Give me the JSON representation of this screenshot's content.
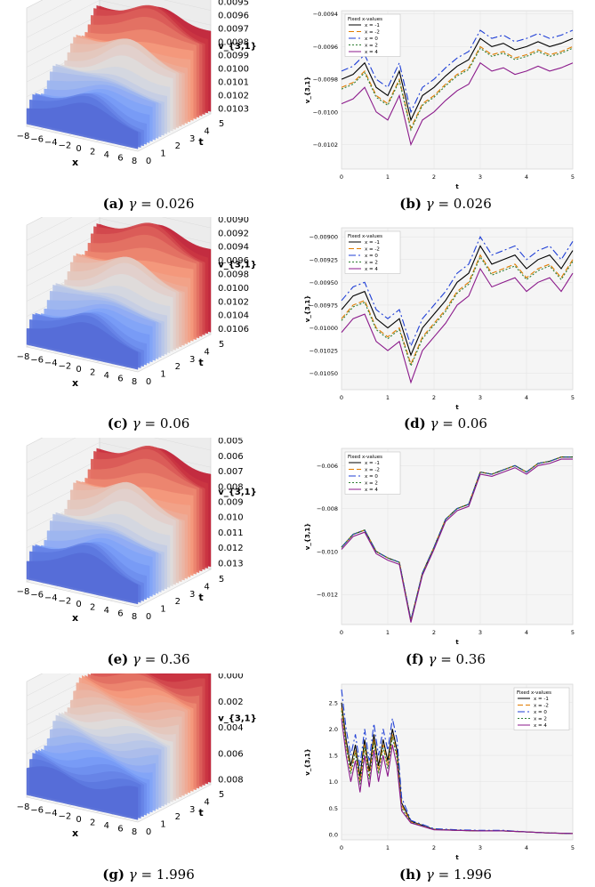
{
  "figure": {
    "captions": [
      {
        "tag": "(a)",
        "gamma": "γ",
        "eq": "= 0.026"
      },
      {
        "tag": "(b)",
        "gamma": "γ",
        "eq": "= 0.026"
      },
      {
        "tag": "(c)",
        "gamma": "γ",
        "eq": "= 0.06"
      },
      {
        "tag": "(d)",
        "gamma": "γ",
        "eq": "= 0.06"
      },
      {
        "tag": "(e)",
        "gamma": "γ",
        "eq": "= 0.36"
      },
      {
        "tag": "(f)",
        "gamma": "γ",
        "eq": "= 0.36"
      },
      {
        "tag": "(g)",
        "gamma": "γ",
        "eq": "= 1.996"
      },
      {
        "tag": "(h)",
        "gamma": "γ",
        "eq": "= 1.996"
      }
    ]
  },
  "chart_data": [
    {
      "type": "surface3d",
      "panel": "a",
      "xlabel": "x",
      "ylabel": "t",
      "zlabel": "v_{3,1}",
      "x_ticks": [
        "−8",
        "−6",
        "−4",
        "−2",
        "0",
        "2",
        "4",
        "6",
        "8"
      ],
      "t_ticks": [
        "0",
        "1",
        "2",
        "3",
        "4",
        "5"
      ],
      "z_ticks": [
        "0.0095",
        "0.0096",
        "0.0097",
        "0.0098",
        "0.0099",
        "0.0100",
        "0.0101",
        "0.0102",
        "0.0103"
      ],
      "colormap": [
        "#b40426",
        "#f4987a",
        "#dddddd",
        "#7b9ff9",
        "#3b4cc0"
      ]
    },
    {
      "type": "line",
      "panel": "b",
      "xlabel": "t",
      "ylabel": "v_{3,1}",
      "x_ticks": [
        "0",
        "1",
        "2",
        "3",
        "4",
        "5"
      ],
      "y_ticks": [
        "−0.0094",
        "−0.0096",
        "−0.0098",
        "−0.0100",
        "−0.0102"
      ],
      "xlim": [
        0,
        5
      ],
      "ylim": [
        -0.01035,
        -0.00938
      ],
      "legend_title": "Fixed x-values",
      "legend_position": "top-left",
      "t": [
        0,
        0.25,
        0.5,
        0.75,
        1.0,
        1.25,
        1.5,
        1.75,
        2.0,
        2.25,
        2.5,
        2.75,
        3.0,
        3.25,
        3.5,
        3.75,
        4.0,
        4.25,
        4.5,
        4.75,
        5.0
      ],
      "series": [
        {
          "name": "x = -1",
          "color": "#000000",
          "dash": "solid",
          "values": [
            -0.0098,
            -0.00977,
            -0.0097,
            -0.00985,
            -0.0099,
            -0.00975,
            -0.01005,
            -0.0099,
            -0.00985,
            -0.00978,
            -0.00972,
            -0.00968,
            -0.00955,
            -0.0096,
            -0.00958,
            -0.00962,
            -0.0096,
            -0.00957,
            -0.0096,
            -0.00958,
            -0.00955
          ]
        },
        {
          "name": "x = -2",
          "color": "#e07b00",
          "dash": "6,3",
          "values": [
            -0.00985,
            -0.00982,
            -0.00975,
            -0.0099,
            -0.00995,
            -0.0098,
            -0.0101,
            -0.00995,
            -0.0099,
            -0.00983,
            -0.00977,
            -0.00973,
            -0.0096,
            -0.00965,
            -0.00963,
            -0.00967,
            -0.00965,
            -0.00962,
            -0.00965,
            -0.00963,
            -0.0096
          ]
        },
        {
          "name": "x = 0",
          "color": "#1f3fd6",
          "dash": "8,3,2,3",
          "values": [
            -0.00975,
            -0.00972,
            -0.00965,
            -0.0098,
            -0.00985,
            -0.0097,
            -0.01,
            -0.00985,
            -0.0098,
            -0.00973,
            -0.00967,
            -0.00963,
            -0.0095,
            -0.00955,
            -0.00953,
            -0.00957,
            -0.00955,
            -0.00952,
            -0.00955,
            -0.00953,
            -0.0095
          ]
        },
        {
          "name": "x = 2",
          "color": "#2e7d32",
          "dash": "2,2",
          "values": [
            -0.00986,
            -0.00983,
            -0.00976,
            -0.00991,
            -0.00996,
            -0.00981,
            -0.01011,
            -0.00996,
            -0.00991,
            -0.00984,
            -0.00978,
            -0.00974,
            -0.00961,
            -0.00966,
            -0.00964,
            -0.00968,
            -0.00966,
            -0.00963,
            -0.00966,
            -0.00964,
            -0.00961
          ]
        },
        {
          "name": "x = 4",
          "color": "#8b1a8b",
          "dash": "solid",
          "values": [
            -0.00995,
            -0.00992,
            -0.00985,
            -0.01,
            -0.01005,
            -0.0099,
            -0.0102,
            -0.01005,
            -0.01,
            -0.00993,
            -0.00987,
            -0.00983,
            -0.0097,
            -0.00975,
            -0.00973,
            -0.00977,
            -0.00975,
            -0.00972,
            -0.00975,
            -0.00973,
            -0.0097
          ]
        }
      ]
    },
    {
      "type": "surface3d",
      "panel": "c",
      "xlabel": "x",
      "ylabel": "t",
      "zlabel": "v_{3,1}",
      "x_ticks": [
        "−8",
        "−6",
        "−4",
        "−2",
        "0",
        "2",
        "4",
        "6",
        "8"
      ],
      "t_ticks": [
        "0",
        "1",
        "2",
        "3",
        "4",
        "5"
      ],
      "z_ticks": [
        "0.0090",
        "0.0092",
        "0.0094",
        "0.0096",
        "0.0098",
        "0.0100",
        "0.0102",
        "0.0104",
        "0.0106"
      ],
      "colormap": [
        "#b40426",
        "#f4987a",
        "#dddddd",
        "#7b9ff9",
        "#3b4cc0"
      ]
    },
    {
      "type": "line",
      "panel": "d",
      "xlabel": "t",
      "ylabel": "v_{3,1}",
      "x_ticks": [
        "0",
        "1",
        "2",
        "3",
        "4",
        "5"
      ],
      "y_ticks": [
        "−0.00900",
        "−0.00925",
        "−0.00950",
        "−0.00975",
        "−0.01000",
        "−0.01025",
        "−0.01050"
      ],
      "xlim": [
        0,
        5
      ],
      "ylim": [
        -0.01068,
        -0.0089
      ],
      "legend_title": "Fixed x-values",
      "legend_position": "top-left",
      "t": [
        0,
        0.25,
        0.5,
        0.75,
        1.0,
        1.25,
        1.5,
        1.75,
        2.0,
        2.25,
        2.5,
        2.75,
        3.0,
        3.25,
        3.5,
        3.75,
        4.0,
        4.25,
        4.5,
        4.75,
        5.0
      ],
      "series": [
        {
          "name": "x = -1",
          "color": "#000000",
          "dash": "solid",
          "values": [
            -0.0098,
            -0.00965,
            -0.0096,
            -0.0099,
            -0.01,
            -0.0099,
            -0.0103,
            -0.01,
            -0.00985,
            -0.0097,
            -0.0095,
            -0.0094,
            -0.0091,
            -0.0093,
            -0.00925,
            -0.0092,
            -0.00935,
            -0.00925,
            -0.0092,
            -0.00935,
            -0.00915
          ]
        },
        {
          "name": "x = -2",
          "color": "#e07b00",
          "dash": "6,3",
          "values": [
            -0.0099,
            -0.00975,
            -0.0097,
            -0.01,
            -0.0101,
            -0.01,
            -0.0104,
            -0.0101,
            -0.00995,
            -0.0098,
            -0.0096,
            -0.0095,
            -0.0092,
            -0.0094,
            -0.00935,
            -0.0093,
            -0.00945,
            -0.00935,
            -0.0093,
            -0.00945,
            -0.00925
          ]
        },
        {
          "name": "x = 0",
          "color": "#1f3fd6",
          "dash": "8,3,2,3",
          "values": [
            -0.0097,
            -0.00955,
            -0.0095,
            -0.0098,
            -0.0099,
            -0.0098,
            -0.0102,
            -0.0099,
            -0.00975,
            -0.0096,
            -0.0094,
            -0.0093,
            -0.009,
            -0.0092,
            -0.00915,
            -0.0091,
            -0.00925,
            -0.00915,
            -0.0091,
            -0.00925,
            -0.00905
          ]
        },
        {
          "name": "x = 2",
          "color": "#2e7d32",
          "dash": "2,2",
          "values": [
            -0.00992,
            -0.00977,
            -0.00972,
            -0.01002,
            -0.01012,
            -0.01002,
            -0.01042,
            -0.01012,
            -0.00997,
            -0.00982,
            -0.00962,
            -0.00952,
            -0.00922,
            -0.00942,
            -0.00937,
            -0.00932,
            -0.00947,
            -0.00937,
            -0.00932,
            -0.00947,
            -0.00927
          ]
        },
        {
          "name": "x = 4",
          "color": "#8b1a8b",
          "dash": "solid",
          "values": [
            -0.01005,
            -0.0099,
            -0.00985,
            -0.01015,
            -0.01025,
            -0.01015,
            -0.0106,
            -0.01025,
            -0.0101,
            -0.00995,
            -0.00975,
            -0.00965,
            -0.00935,
            -0.00955,
            -0.0095,
            -0.00945,
            -0.0096,
            -0.0095,
            -0.00945,
            -0.0096,
            -0.0094
          ]
        }
      ]
    },
    {
      "type": "surface3d",
      "panel": "e",
      "xlabel": "x",
      "ylabel": "t",
      "zlabel": "v_{3,1}",
      "x_ticks": [
        "−8",
        "−6",
        "−4",
        "−2",
        "0",
        "2",
        "4",
        "6",
        "8"
      ],
      "t_ticks": [
        "0",
        "1",
        "2",
        "3",
        "4",
        "5"
      ],
      "z_ticks": [
        "0.005",
        "0.006",
        "0.007",
        "0.008",
        "0.009",
        "0.010",
        "0.011",
        "0.012",
        "0.013"
      ],
      "colormap": [
        "#b40426",
        "#f4987a",
        "#dddddd",
        "#7b9ff9",
        "#3b4cc0"
      ]
    },
    {
      "type": "line",
      "panel": "f",
      "xlabel": "t",
      "ylabel": "v_{3,1}",
      "x_ticks": [
        "0",
        "1",
        "2",
        "3",
        "4",
        "5"
      ],
      "y_ticks": [
        "−0.006",
        "−0.008",
        "−0.010",
        "−0.012"
      ],
      "xlim": [
        0,
        5
      ],
      "ylim": [
        -0.0134,
        -0.0052
      ],
      "legend_title": "Fixed x-values",
      "legend_position": "top-left",
      "t": [
        0,
        0.25,
        0.5,
        0.75,
        1.0,
        1.25,
        1.5,
        1.75,
        2.0,
        2.25,
        2.5,
        2.75,
        3.0,
        3.25,
        3.5,
        3.75,
        4.0,
        4.25,
        4.5,
        4.75,
        5.0
      ],
      "series": [
        {
          "name": "x = -1",
          "color": "#000000",
          "dash": "solid",
          "values": [
            -0.0098,
            -0.0092,
            -0.009,
            -0.01,
            -0.0103,
            -0.0105,
            -0.0132,
            -0.011,
            -0.0098,
            -0.0085,
            -0.008,
            -0.0078,
            -0.0063,
            -0.0064,
            -0.0062,
            -0.006,
            -0.0063,
            -0.0059,
            -0.0058,
            -0.0056,
            -0.0056
          ]
        },
        {
          "name": "x = -2",
          "color": "#e07b00",
          "dash": "6,3",
          "values": [
            -0.0098,
            -0.0092,
            -0.009,
            -0.01,
            -0.0103,
            -0.0105,
            -0.0132,
            -0.011,
            -0.0098,
            -0.0085,
            -0.008,
            -0.0078,
            -0.0063,
            -0.0064,
            -0.0062,
            -0.006,
            -0.0063,
            -0.0059,
            -0.0058,
            -0.0056,
            -0.0056
          ]
        },
        {
          "name": "x = 0",
          "color": "#1f3fd6",
          "dash": "8,3,2,3",
          "values": [
            -0.0098,
            -0.0092,
            -0.009,
            -0.01,
            -0.0103,
            -0.0105,
            -0.0132,
            -0.011,
            -0.0098,
            -0.0085,
            -0.008,
            -0.0078,
            -0.0063,
            -0.0064,
            -0.0062,
            -0.006,
            -0.0063,
            -0.0059,
            -0.0058,
            -0.0056,
            -0.0056
          ]
        },
        {
          "name": "x = 2",
          "color": "#2e7d32",
          "dash": "2,2",
          "values": [
            -0.0098,
            -0.0092,
            -0.009,
            -0.01,
            -0.0103,
            -0.0105,
            -0.0132,
            -0.011,
            -0.0098,
            -0.0085,
            -0.008,
            -0.0078,
            -0.0063,
            -0.0064,
            -0.0062,
            -0.006,
            -0.0063,
            -0.0059,
            -0.0058,
            -0.0056,
            -0.0056
          ]
        },
        {
          "name": "x = 4",
          "color": "#8b1a8b",
          "dash": "solid",
          "values": [
            -0.0099,
            -0.0093,
            -0.0091,
            -0.0101,
            -0.0104,
            -0.0106,
            -0.0133,
            -0.0111,
            -0.0099,
            -0.0086,
            -0.0081,
            -0.0079,
            -0.0064,
            -0.0065,
            -0.0063,
            -0.0061,
            -0.0064,
            -0.006,
            -0.0059,
            -0.0057,
            -0.0057
          ]
        }
      ]
    },
    {
      "type": "surface3d",
      "panel": "g",
      "xlabel": "x",
      "ylabel": "t",
      "zlabel": "v_{3,1}",
      "x_ticks": [
        "−8",
        "−6",
        "−4",
        "−2",
        "0",
        "2",
        "4",
        "6",
        "8"
      ],
      "t_ticks": [
        "0",
        "1",
        "2",
        "3",
        "4",
        "5"
      ],
      "z_ticks": [
        "0.000",
        "0.002",
        "0.004",
        "0.006",
        "0.008"
      ],
      "colormap": [
        "#b40426",
        "#f4987a",
        "#dddddd",
        "#7b9ff9",
        "#3b4cc0"
      ]
    },
    {
      "type": "line",
      "panel": "h",
      "xlabel": "t",
      "ylabel": "v_{3,1}",
      "x_ticks": [
        "0",
        "1",
        "2",
        "3",
        "4",
        "5"
      ],
      "y_ticks": [
        "0.0",
        "0.5",
        "1.0",
        "1.5",
        "2.0",
        "2.5"
      ],
      "xlim": [
        0,
        5
      ],
      "ylim": [
        -0.1,
        2.85
      ],
      "legend_title": "Fixed x-values",
      "legend_position": "top-right",
      "t": [
        0,
        0.1,
        0.2,
        0.3,
        0.4,
        0.5,
        0.6,
        0.7,
        0.8,
        0.9,
        1.0,
        1.1,
        1.2,
        1.3,
        1.5,
        2.0,
        2.5,
        3.0,
        3.5,
        4.0,
        4.5,
        5.0
      ],
      "series": [
        {
          "name": "x = -1",
          "color": "#000000",
          "dash": "solid",
          "values": [
            2.5,
            1.8,
            1.3,
            1.7,
            1.1,
            1.8,
            1.2,
            1.9,
            1.3,
            1.8,
            1.4,
            2.0,
            1.6,
            0.6,
            0.25,
            0.1,
            0.08,
            0.07,
            0.07,
            0.05,
            0.03,
            0.02
          ]
        },
        {
          "name": "x = -2",
          "color": "#e07b00",
          "dash": "6,3",
          "values": [
            2.4,
            1.7,
            1.2,
            1.6,
            1.0,
            1.7,
            1.1,
            1.8,
            1.2,
            1.7,
            1.3,
            1.9,
            1.5,
            0.55,
            0.24,
            0.1,
            0.08,
            0.07,
            0.07,
            0.05,
            0.03,
            0.02
          ]
        },
        {
          "name": "x = 0",
          "color": "#1f3fd6",
          "dash": "8,3,2,3",
          "values": [
            2.75,
            2.0,
            1.5,
            1.9,
            1.3,
            2.0,
            1.4,
            2.1,
            1.5,
            2.0,
            1.6,
            2.2,
            1.8,
            0.7,
            0.27,
            0.11,
            0.09,
            0.08,
            0.08,
            0.05,
            0.03,
            0.02
          ]
        },
        {
          "name": "x = 2",
          "color": "#2e7d32",
          "dash": "2,2",
          "values": [
            2.35,
            1.65,
            1.15,
            1.55,
            0.95,
            1.65,
            1.05,
            1.75,
            1.15,
            1.65,
            1.25,
            1.85,
            1.45,
            0.5,
            0.23,
            0.1,
            0.08,
            0.07,
            0.07,
            0.05,
            0.03,
            0.02
          ]
        },
        {
          "name": "x = 4",
          "color": "#8b1a8b",
          "dash": "solid",
          "values": [
            2.2,
            1.5,
            1.0,
            1.4,
            0.8,
            1.5,
            0.9,
            1.6,
            1.0,
            1.5,
            1.1,
            1.7,
            1.3,
            0.45,
            0.22,
            0.09,
            0.08,
            0.07,
            0.07,
            0.05,
            0.03,
            0.02
          ]
        }
      ]
    }
  ]
}
